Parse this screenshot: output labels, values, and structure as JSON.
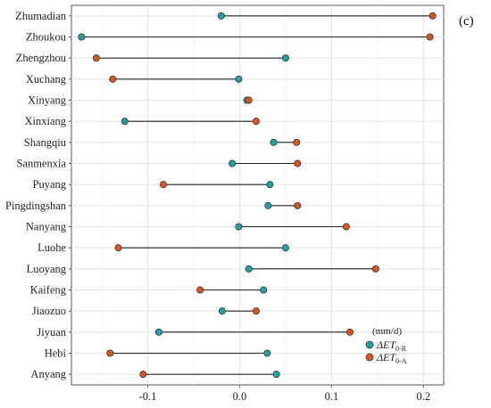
{
  "panel_tag": "(c)",
  "chart_data": {
    "type": "dumbbell",
    "categories": [
      "Zhumadian",
      "Zhoukou",
      "Zhengzhou",
      "Xuchang",
      "Xinyang",
      "Xinxiang",
      "Shangqiu",
      "Sanmenxia",
      "Puyang",
      "Pingdingshan",
      "Nanyang",
      "Luohe",
      "Luoyang",
      "Kaifeng",
      "Jiaozuo",
      "Jiyuan",
      "Hebi",
      "Anyang"
    ],
    "series": [
      {
        "name": "ΔET0-R",
        "label_main": "ΔET",
        "label_sub": "0-R",
        "color": "#1fa3a8",
        "values": [
          -0.02,
          -0.172,
          0.05,
          -0.001,
          0.008,
          -0.125,
          0.037,
          -0.008,
          0.033,
          0.031,
          -0.001,
          0.05,
          0.01,
          0.026,
          -0.019,
          -0.088,
          0.03,
          0.04
        ]
      },
      {
        "name": "ΔET0-A",
        "label_main": "ΔET",
        "label_sub": "0-A",
        "color": "#e0531f",
        "values": [
          0.21,
          0.207,
          -0.156,
          -0.138,
          0.01,
          0.018,
          0.062,
          0.063,
          -0.083,
          0.063,
          0.116,
          -0.132,
          0.148,
          -0.043,
          0.018,
          0.12,
          -0.141,
          -0.105
        ]
      }
    ],
    "x_ticks": [
      -0.1,
      0.0,
      0.1,
      0.2
    ],
    "x_tick_labels": [
      "-0.1",
      "0.0",
      "0.1",
      "0.2"
    ],
    "xlim": [
      -0.183,
      0.222
    ],
    "grid": true,
    "legend_title": "(mm/d)",
    "legend_position": "bottom-right"
  }
}
